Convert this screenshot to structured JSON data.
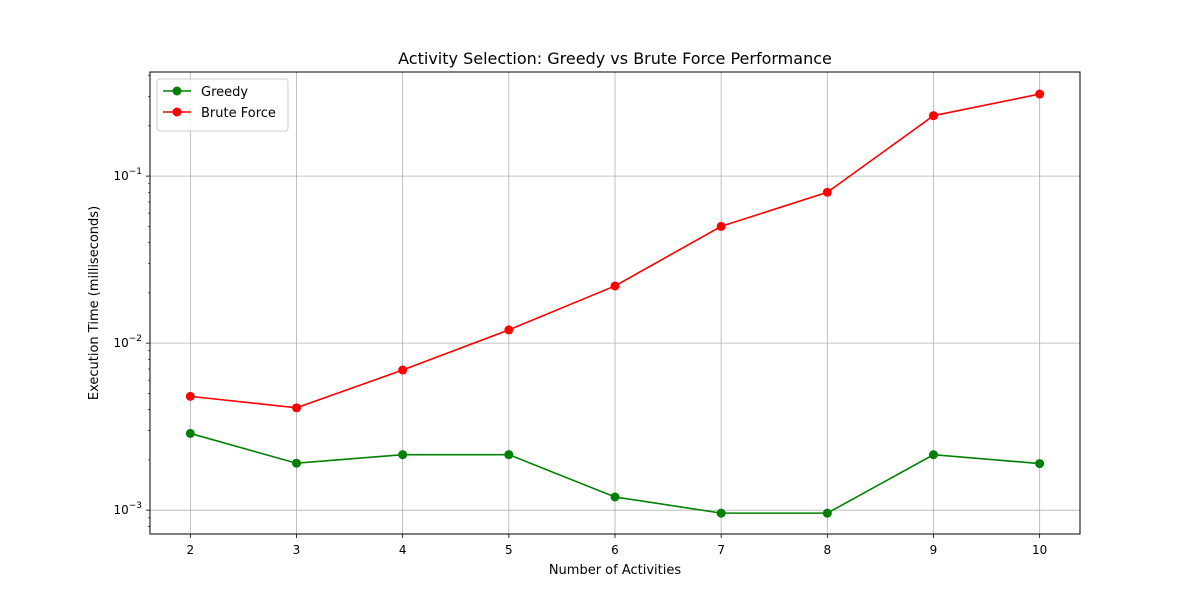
{
  "chart_data": {
    "type": "line",
    "title": "Activity Selection: Greedy vs Brute Force Performance",
    "xlabel": "Number of Activities",
    "ylabel": "Execution Time (milliseconds)",
    "x": [
      2,
      3,
      4,
      5,
      6,
      7,
      8,
      9,
      10
    ],
    "xlim": [
      1.62,
      10.38
    ],
    "ylim": [
      0.00072,
      0.42
    ],
    "yscale": "log",
    "y_ticks": [
      {
        "base": "10",
        "exp": "−3",
        "value": 0.001
      },
      {
        "base": "10",
        "exp": "−2",
        "value": 0.01
      },
      {
        "base": "10",
        "exp": "−1",
        "value": 0.1
      }
    ],
    "grid": true,
    "legend": "top-left",
    "series": [
      {
        "name": "Greedy",
        "color": "#008000",
        "marker": "circle",
        "values": [
          0.00288,
          0.00191,
          0.00215,
          0.00215,
          0.0012,
          0.00096,
          0.00096,
          0.00215,
          0.0019
        ]
      },
      {
        "name": "Brute Force",
        "color": "#ff0000",
        "marker": "circle",
        "values": [
          0.0048,
          0.0041,
          0.0069,
          0.012,
          0.022,
          0.05,
          0.08,
          0.23,
          0.31
        ]
      }
    ]
  }
}
